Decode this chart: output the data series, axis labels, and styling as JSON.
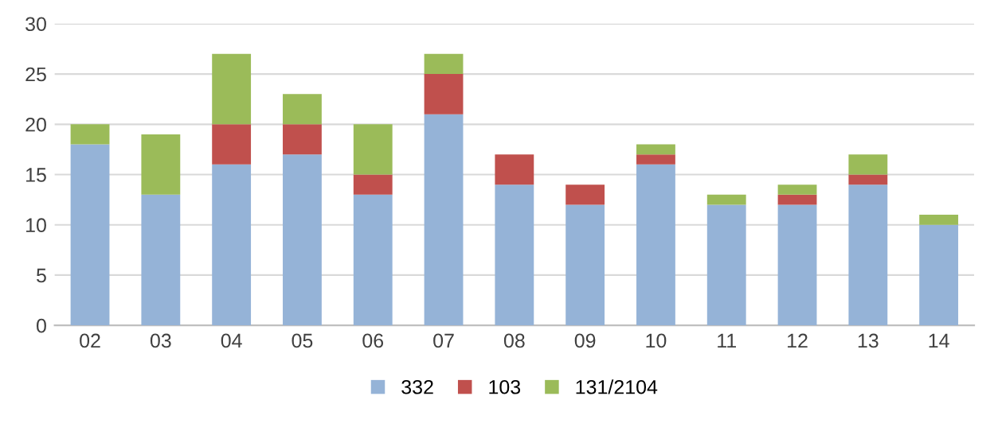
{
  "chart_data": {
    "type": "bar",
    "stacked": true,
    "categories": [
      "02",
      "03",
      "04",
      "05",
      "06",
      "07",
      "08",
      "09",
      "10",
      "11",
      "12",
      "13",
      "14"
    ],
    "series": [
      {
        "name": "332",
        "color": "#95b3d7",
        "values": [
          18,
          13,
          16,
          17,
          13,
          21,
          14,
          12,
          16,
          12,
          12,
          14,
          10
        ]
      },
      {
        "name": "103",
        "color": "#c0504d",
        "values": [
          0,
          0,
          4,
          3,
          2,
          4,
          3,
          2,
          1,
          0,
          1,
          1,
          0
        ]
      },
      {
        "name": "131/2104",
        "color": "#9bbb59",
        "values": [
          2,
          6,
          7,
          3,
          5,
          2,
          0,
          0,
          1,
          1,
          1,
          2,
          1
        ]
      }
    ],
    "ylim": [
      0,
      30
    ],
    "yticks": [
      0,
      5,
      10,
      15,
      20,
      25,
      30
    ],
    "grid": "y",
    "legend": "bottom"
  }
}
